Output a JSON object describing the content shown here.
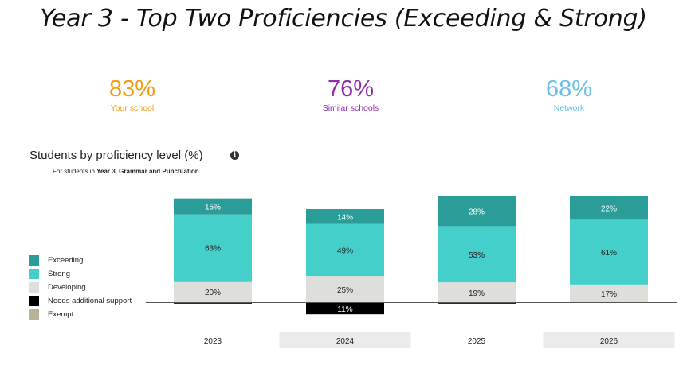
{
  "title": "Year 3 - Top Two Proficiencies (Exceeding & Strong)",
  "stats": [
    {
      "value": "83%",
      "label": "Your school",
      "color": "#F39C12"
    },
    {
      "value": "76%",
      "label": "Similar schools",
      "color": "#8E2BAE"
    },
    {
      "value": "68%",
      "label": "Network",
      "color": "#6EC1E4"
    }
  ],
  "section_title": "Students by proficiency level (%)",
  "info_icon": "info-icon",
  "subtitle": {
    "prefix": "For students in ",
    "year": "Year 3",
    "sep": ", ",
    "subject": "Grammar and Punctuation"
  },
  "chart_data": {
    "type": "bar",
    "stacked": true,
    "categories": [
      "2023",
      "2024",
      "2025",
      "2026"
    ],
    "series": [
      {
        "name": "Exceeding",
        "color": "#2A9D98",
        "values": [
          15,
          14,
          28,
          22
        ]
      },
      {
        "name": "Strong",
        "color": "#45CFCB",
        "values": [
          63,
          49,
          53,
          61
        ]
      },
      {
        "name": "Developing",
        "color": "#DEDEDB",
        "values": [
          20,
          25,
          19,
          17
        ]
      },
      {
        "name": "Needs additional support",
        "color": "#000000",
        "values": [
          1,
          11,
          1,
          0
        ]
      },
      {
        "name": "Exempt",
        "color": "#B7B49A",
        "values": [
          0,
          0,
          0,
          0
        ]
      }
    ],
    "value_labels": [
      [
        "15%",
        "63%",
        "20%",
        "",
        ""
      ],
      [
        "14%",
        "49%",
        "25%",
        "11%",
        ""
      ],
      [
        "28%",
        "53%",
        "19%",
        "",
        ""
      ],
      [
        "22%",
        "61%",
        "17%",
        "",
        ""
      ]
    ],
    "legend_position": "left",
    "grid": false
  }
}
